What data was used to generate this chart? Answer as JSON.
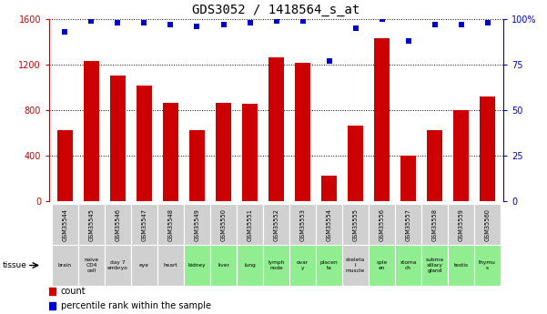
{
  "title": "GDS3052 / 1418564_s_at",
  "samples": [
    "GSM35544",
    "GSM35545",
    "GSM35546",
    "GSM35547",
    "GSM35548",
    "GSM35549",
    "GSM35550",
    "GSM35551",
    "GSM35552",
    "GSM35553",
    "GSM35554",
    "GSM35555",
    "GSM35556",
    "GSM35557",
    "GSM35558",
    "GSM35559",
    "GSM35560"
  ],
  "counts": [
    620,
    1230,
    1100,
    1010,
    860,
    620,
    860,
    850,
    1260,
    1210,
    220,
    660,
    1430,
    400,
    620,
    800,
    920
  ],
  "percentiles": [
    93,
    99,
    98,
    98,
    97,
    96,
    97,
    98,
    99,
    99,
    77,
    95,
    100,
    88,
    97,
    97,
    98
  ],
  "tissues": [
    "brain",
    "naive\nCD4\ncell",
    "day 7\nembryо",
    "eye",
    "heart",
    "kidney",
    "liver",
    "lung",
    "lymph\nnode",
    "ovar\ny",
    "placen\nta",
    "skeleta\nl\nmuscle",
    "sple\nen",
    "stoma\nch",
    "subma\nxillary\ngland",
    "testis",
    "thymu\ns"
  ],
  "tissue_colors": [
    "#d0d0d0",
    "#d0d0d0",
    "#d0d0d0",
    "#d0d0d0",
    "#d0d0d0",
    "#90ee90",
    "#90ee90",
    "#90ee90",
    "#90ee90",
    "#90ee90",
    "#90ee90",
    "#d0d0d0",
    "#90ee90",
    "#90ee90",
    "#90ee90",
    "#90ee90",
    "#90ee90"
  ],
  "bar_color": "#cc0000",
  "dot_color": "#0000cc",
  "ylim_left": [
    0,
    1600
  ],
  "ylim_right": [
    0,
    100
  ],
  "yticks_left": [
    0,
    400,
    800,
    1200,
    1600
  ],
  "yticks_right": [
    0,
    25,
    50,
    75,
    100
  ],
  "grid_color": "black",
  "bg_color": "#ffffff",
  "title_fontsize": 10,
  "axis_label_color_left": "#cc0000",
  "axis_label_color_right": "#0000cc"
}
